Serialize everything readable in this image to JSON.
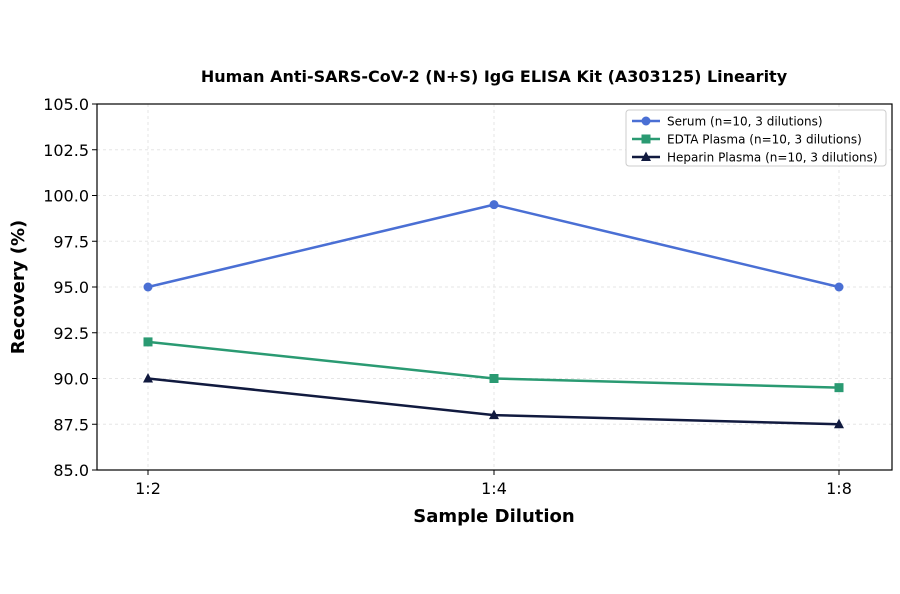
{
  "chart_data": {
    "type": "line",
    "title": "Human Anti-SARS-CoV-2 (N+S) IgG ELISA Kit (A303125) Linearity",
    "xlabel": "Sample Dilution",
    "ylabel": "Recovery (%)",
    "categories": [
      "1:2",
      "1:4",
      "1:8"
    ],
    "ylim": [
      85.0,
      105.0
    ],
    "yticks": [
      "85.0",
      "87.5",
      "90.0",
      "92.5",
      "95.0",
      "97.5",
      "100.0",
      "102.5",
      "105.0"
    ],
    "grid": true,
    "legend_position": "top-right",
    "series": [
      {
        "name": "Serum (n=10, 3 dilutions)",
        "values": [
          95.0,
          99.5,
          95.0
        ],
        "color": "#4a6fd4",
        "marker": "circle"
      },
      {
        "name": "EDTA Plasma (n=10, 3 dilutions)",
        "values": [
          92.0,
          90.0,
          89.5
        ],
        "color": "#2a9a72",
        "marker": "square"
      },
      {
        "name": "Heparin Plasma (n=10, 3 dilutions)",
        "values": [
          90.0,
          88.0,
          87.5
        ],
        "color": "#111a3f",
        "marker": "triangle"
      }
    ]
  }
}
